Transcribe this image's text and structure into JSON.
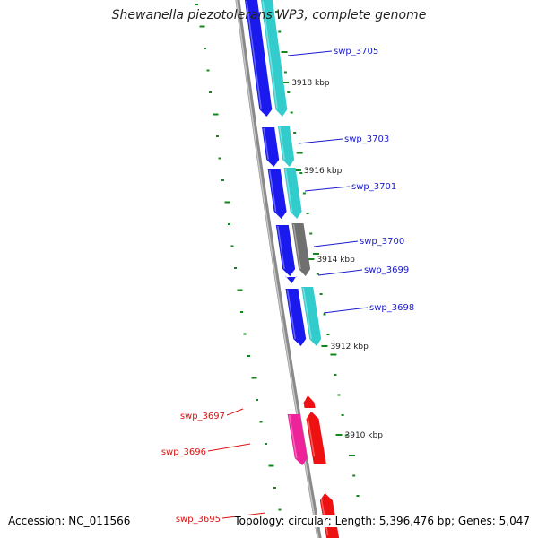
{
  "title": "Shewanella piezotolerans WP3, complete genome",
  "footer": {
    "accession": "Accession: NC_011566",
    "summary": "Topology: circular; Length: 5,396,476 bp; Genes: 5,047"
  },
  "colors": {
    "forward_cds": "#1a1aee",
    "forward_cog": "#33cccc",
    "forward_unclassified": "#707070",
    "reverse_cds": "#ee1111",
    "reverse_cog": "#ee2299",
    "backbone": "#8a8a8a",
    "gc_skew_tick": "#11881a",
    "forward_label": "#1a1acc",
    "reverse_label": "#dd1111",
    "scale_text": "#222222"
  },
  "scale_labels": [
    "3918 kbp",
    "3916 kbp",
    "3914 kbp",
    "3912 kbp",
    "3910 kbp"
  ],
  "forward_genes": [
    {
      "label": "swp_3705",
      "cog": "cyan"
    },
    {
      "label": "swp_3703",
      "cog": "cyan"
    },
    {
      "label": "swp_3701",
      "cog": "cyan"
    },
    {
      "label": "swp_3700",
      "cog": "gray"
    },
    {
      "label": "swp_3699",
      "cog": "none"
    },
    {
      "label": "swp_3698",
      "cog": "cyan"
    }
  ],
  "reverse_genes": [
    {
      "label": "swp_3697"
    },
    {
      "label": "swp_3696"
    },
    {
      "label": "swp_3695"
    }
  ]
}
